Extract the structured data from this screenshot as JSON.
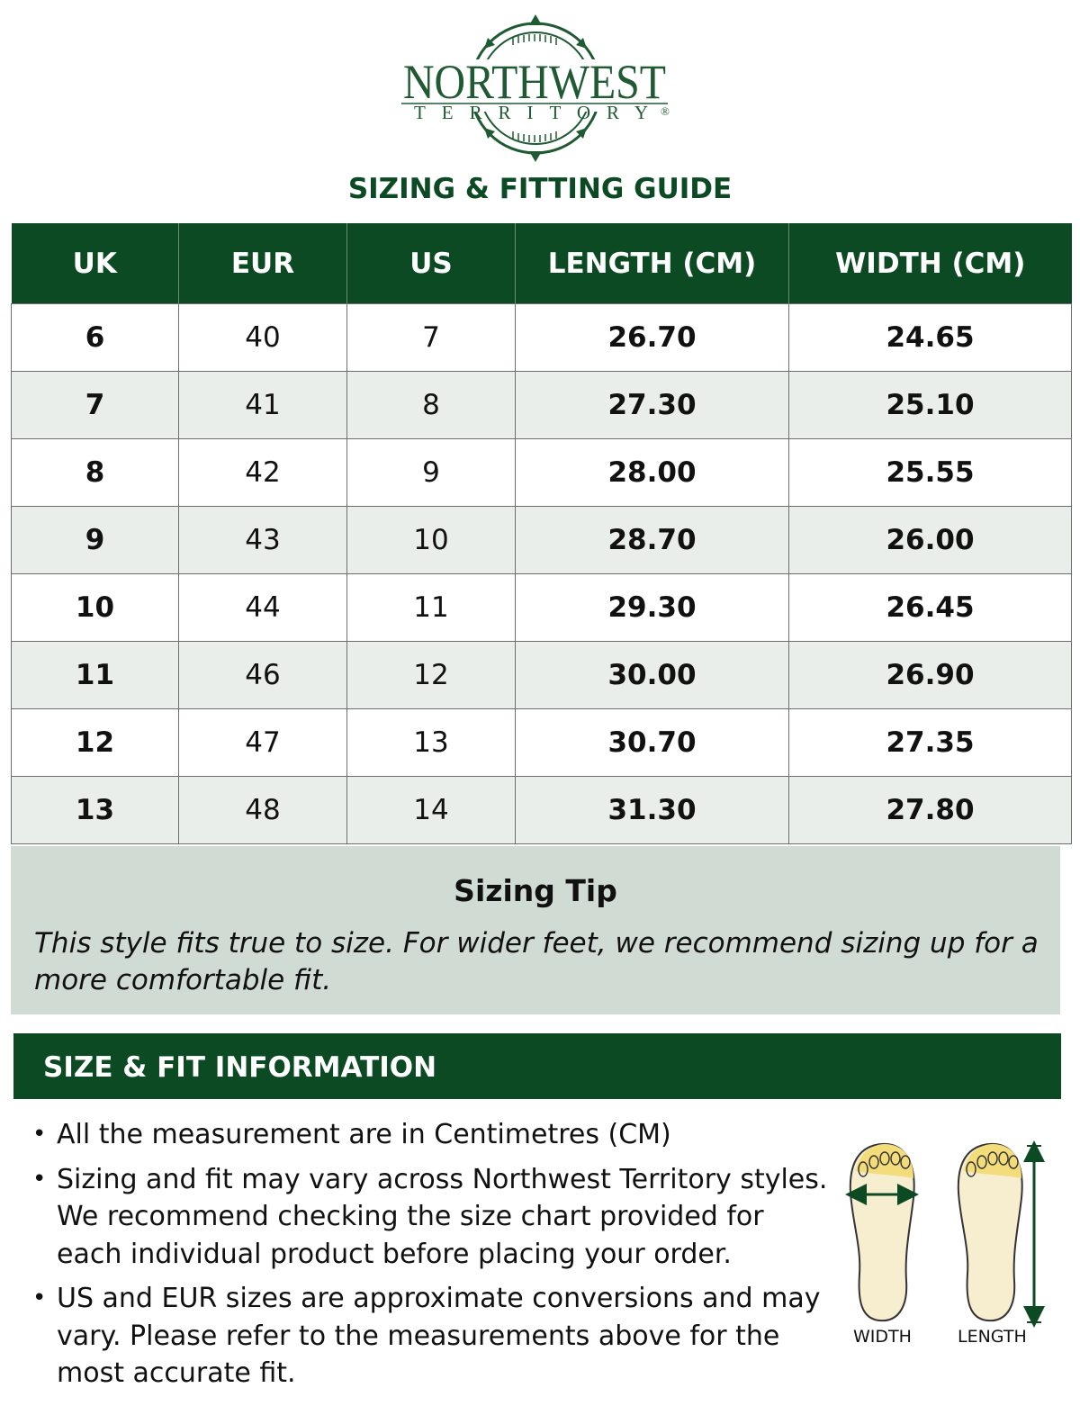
{
  "logo": {
    "brand_line1": "NORTHWEST",
    "brand_line2": "TERRITORY",
    "registered": "®"
  },
  "guide_title": "SIZING & FITTING GUIDE",
  "table": {
    "headers": [
      "UK",
      "EUR",
      "US",
      "LENGTH (CM)",
      "WIDTH (CM)"
    ],
    "rows": [
      [
        "6",
        "40",
        "7",
        "26.70",
        "24.65"
      ],
      [
        "7",
        "41",
        "8",
        "27.30",
        "25.10"
      ],
      [
        "8",
        "42",
        "9",
        "28.00",
        "25.55"
      ],
      [
        "9",
        "43",
        "10",
        "28.70",
        "26.00"
      ],
      [
        "10",
        "44",
        "11",
        "29.30",
        "26.45"
      ],
      [
        "11",
        "46",
        "12",
        "30.00",
        "26.90"
      ],
      [
        "12",
        "47",
        "13",
        "30.70",
        "27.35"
      ],
      [
        "13",
        "48",
        "14",
        "31.30",
        "27.80"
      ]
    ]
  },
  "tip": {
    "title": "Sizing Tip",
    "text": "This style fits true to size. For wider feet, we recommend sizing up for a more comfortable fit."
  },
  "info": {
    "header": "SIZE & FIT INFORMATION",
    "bullets": [
      "All the measurement are in Centimetres (CM)",
      "Sizing and fit may vary across Northwest Territory styles. We recommend checking the size chart provided for each individual product before placing your order.",
      "US and EUR sizes are approximate conversions and may vary. Please refer to the measurements above for the most accurate fit."
    ]
  },
  "diagram": {
    "width_label": "WIDTH",
    "length_label": "LENGTH"
  },
  "colors": {
    "brand_green": "#0b4a22",
    "tip_bg": "#d0dbd3",
    "stripe": "#e9eeeb",
    "insole": "#f7edcf",
    "toe": "#f3dc7a"
  }
}
